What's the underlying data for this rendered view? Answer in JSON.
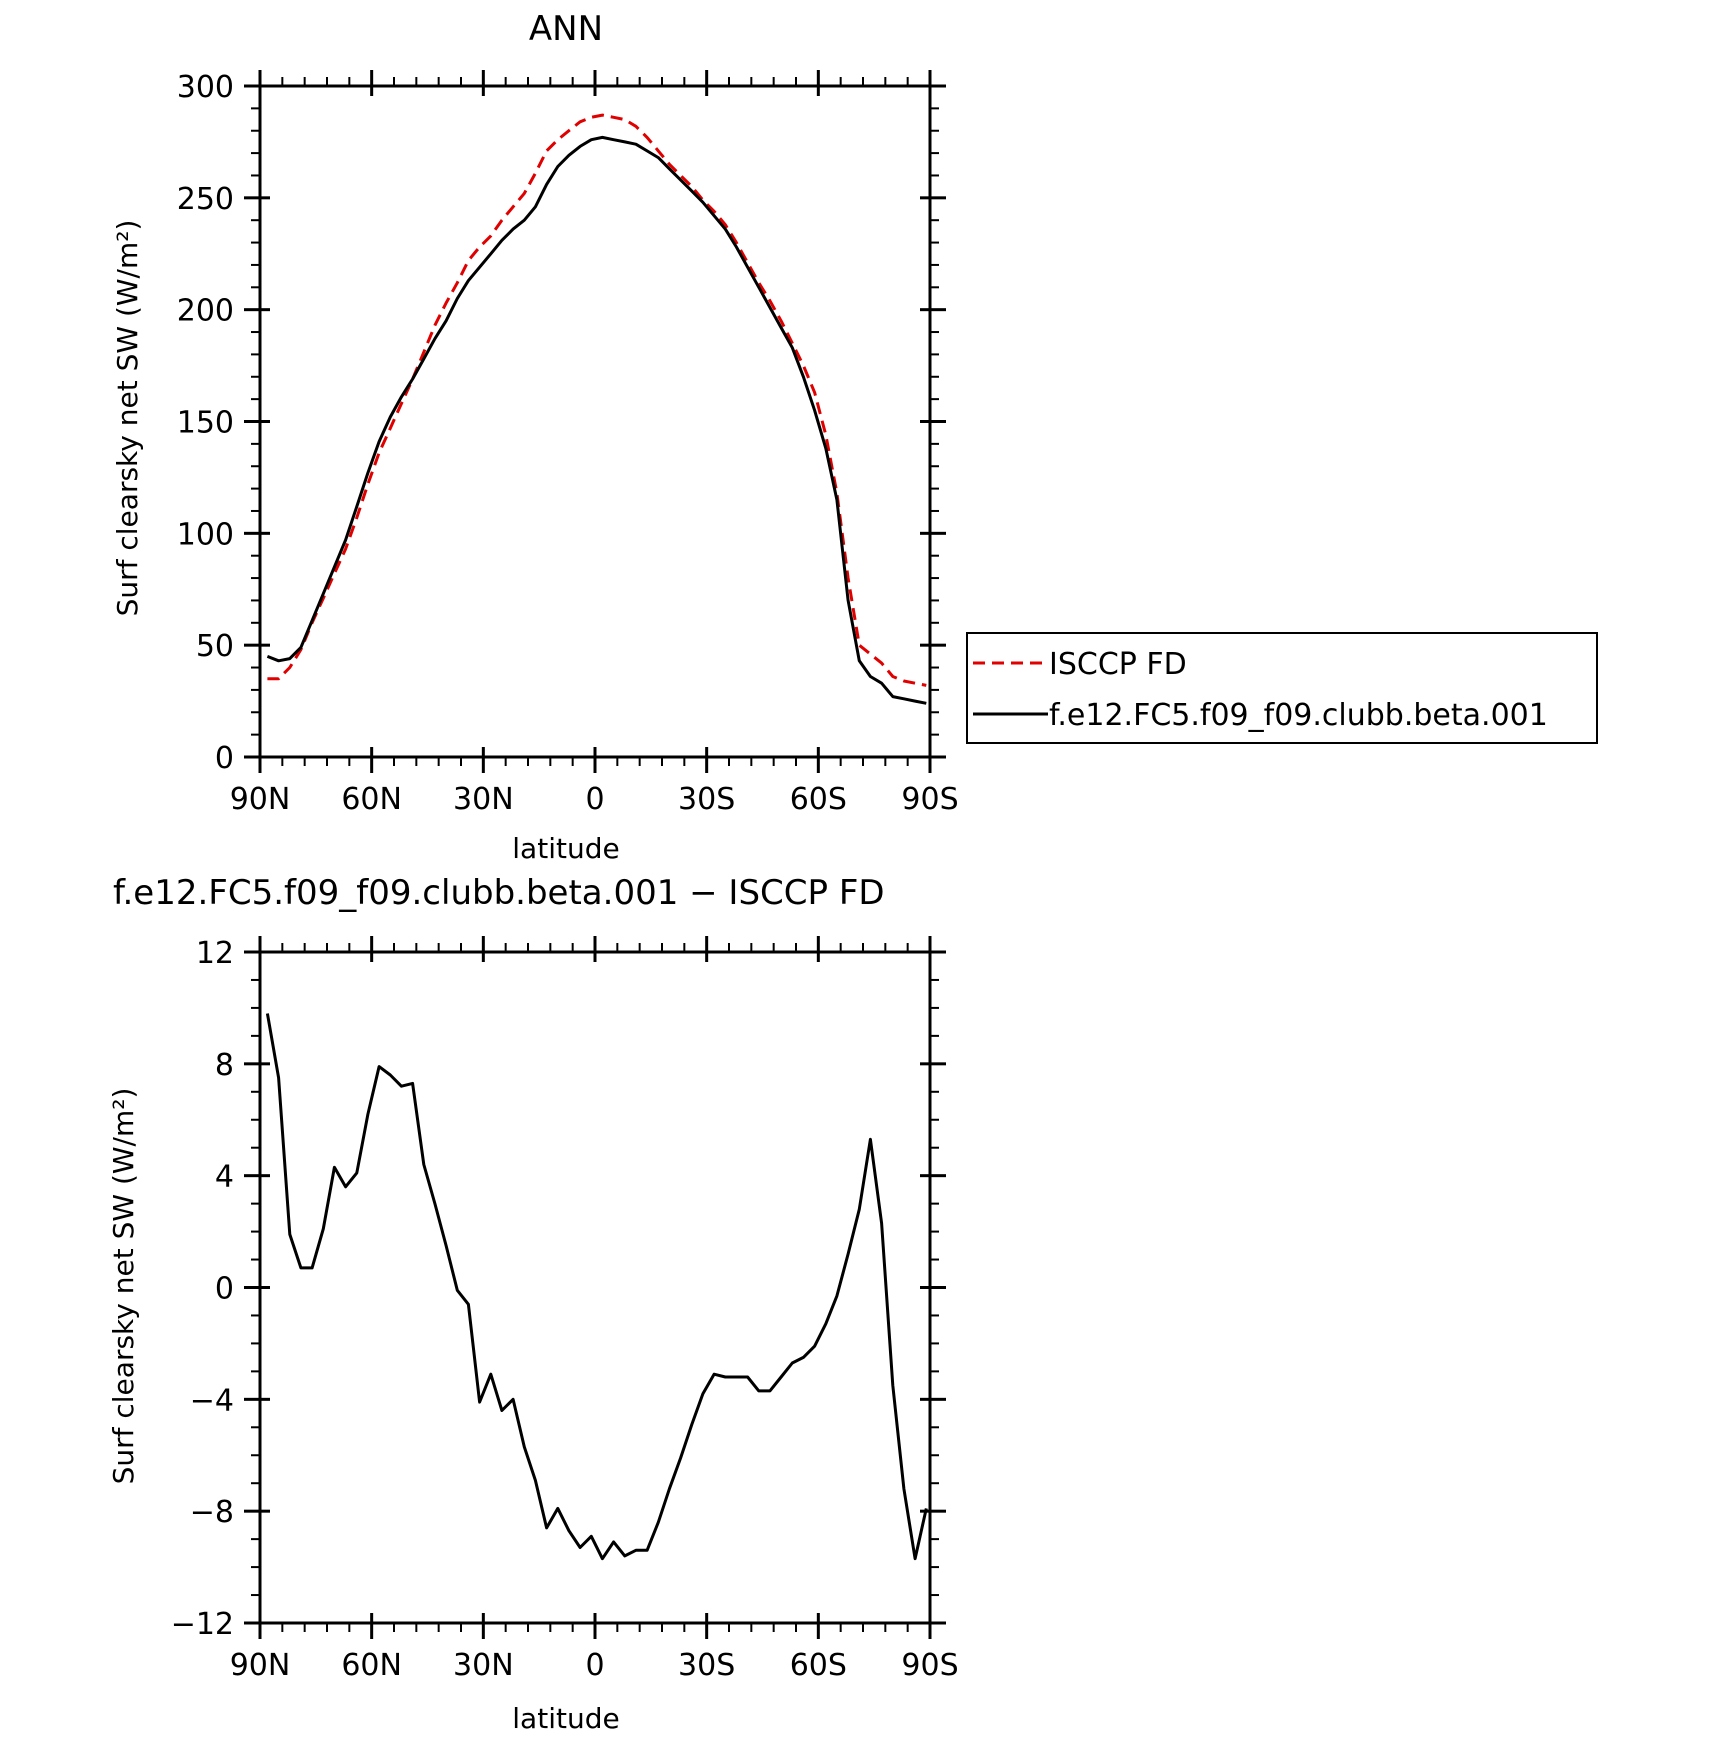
{
  "chart_data": [
    {
      "type": "line",
      "title": "ANN",
      "xlabel": "latitude",
      "ylabel": "Surf clearsky net SW (W/m²)",
      "xlim": [
        -90,
        90
      ],
      "ylim": [
        0,
        300
      ],
      "xticks": [
        -90,
        -60,
        -30,
        0,
        30,
        60,
        90
      ],
      "xtick_labels": [
        "90N",
        "60N",
        "30N",
        "0",
        "30S",
        "60S",
        "90S"
      ],
      "yticks": [
        0,
        50,
        100,
        150,
        200,
        250,
        300
      ],
      "ytick_labels": [
        "0",
        "50",
        "100",
        "150",
        "200",
        "250",
        "300"
      ],
      "grid": false,
      "legend_position": "right, outside plot",
      "series": [
        {
          "name": "ISCCP FD",
          "color": "#e00000",
          "dash": "dashed",
          "x": [
            -88,
            -85,
            -82,
            -79,
            -76,
            -73,
            -70,
            -67,
            -64,
            -61,
            -58,
            -55,
            -52,
            -49,
            -46,
            -43,
            -40,
            -37,
            -34,
            -31,
            -28,
            -25,
            -22,
            -19,
            -16,
            -13,
            -10,
            -7,
            -4,
            -1,
            2,
            5,
            8,
            11,
            14,
            17,
            20,
            23,
            26,
            29,
            32,
            35,
            38,
            41,
            44,
            47,
            50,
            53,
            56,
            59,
            62,
            65,
            68,
            71,
            74,
            77,
            80,
            83,
            86,
            89
          ],
          "y": [
            35,
            35,
            40,
            48,
            60,
            71,
            82,
            93,
            107,
            122,
            136,
            147,
            158,
            169,
            181,
            193,
            203,
            212,
            222,
            228,
            233,
            240,
            246,
            252,
            261,
            271,
            276,
            280,
            284,
            286,
            287,
            286,
            285,
            282,
            277,
            271,
            265,
            260,
            255,
            249,
            244,
            238,
            230,
            221,
            212,
            204,
            195,
            185,
            175,
            163,
            144,
            118,
            80,
            50,
            46,
            42,
            36,
            34,
            33,
            32
          ]
        },
        {
          "name": "f.e12.FC5.f09_f09.clubb.beta.001",
          "color": "#000000",
          "dash": "solid",
          "x": [
            -88,
            -85,
            -82,
            -79,
            -76,
            -73,
            -70,
            -67,
            -64,
            -61,
            -58,
            -55,
            -52,
            -49,
            -46,
            -43,
            -40,
            -37,
            -34,
            -31,
            -28,
            -25,
            -22,
            -19,
            -16,
            -13,
            -10,
            -7,
            -4,
            -1,
            2,
            5,
            8,
            11,
            14,
            17,
            20,
            23,
            26,
            29,
            32,
            35,
            38,
            41,
            44,
            47,
            50,
            53,
            56,
            59,
            62,
            65,
            68,
            71,
            74,
            77,
            80,
            83,
            86,
            89
          ],
          "y": [
            45,
            43,
            44,
            49,
            61,
            73,
            85,
            97,
            112,
            127,
            141,
            152,
            161,
            169,
            178,
            187,
            195,
            205,
            213,
            219,
            225,
            231,
            236,
            240,
            246,
            256,
            264,
            269,
            273,
            276,
            277,
            276,
            275,
            274,
            271,
            268,
            263,
            258,
            253,
            248,
            242,
            236,
            228,
            219,
            210,
            201,
            192,
            183,
            170,
            155,
            138,
            115,
            70,
            43,
            36,
            33,
            27,
            26,
            25,
            24
          ]
        }
      ]
    },
    {
      "type": "line",
      "title": "f.e12.FC5.f09_f09.clubb.beta.001 − ISCCP FD",
      "xlabel": "latitude",
      "ylabel": "Surf clearsky net SW (W/m²)",
      "xlim": [
        -90,
        90
      ],
      "ylim": [
        -12,
        12
      ],
      "xticks": [
        -90,
        -60,
        -30,
        0,
        30,
        60,
        90
      ],
      "xtick_labels": [
        "90N",
        "60N",
        "30N",
        "0",
        "30S",
        "60S",
        "90S"
      ],
      "yticks": [
        -12,
        -8,
        -4,
        0,
        4,
        8,
        12
      ],
      "ytick_labels": [
        "−12",
        "−8",
        "−4",
        "0",
        "4",
        "8",
        "12"
      ],
      "grid": false,
      "series": [
        {
          "color": "#000000",
          "dash": "solid",
          "x": [
            -88,
            -85,
            -82,
            -79,
            -76,
            -73,
            -70,
            -67,
            -64,
            -61,
            -58,
            -55,
            -52,
            -49,
            -46,
            -43,
            -40,
            -37,
            -34,
            -31,
            -28,
            -25,
            -22,
            -19,
            -16,
            -13,
            -10,
            -7,
            -4,
            -1,
            2,
            5,
            8,
            11,
            14,
            17,
            20,
            23,
            26,
            29,
            32,
            35,
            38,
            41,
            44,
            47,
            50,
            53,
            56,
            59,
            62,
            65,
            68,
            71,
            74,
            77,
            80,
            83,
            86,
            89
          ],
          "y": [
            9.8,
            7.5,
            1.9,
            0.7,
            0.7,
            2.1,
            4.3,
            3.6,
            4.1,
            6.2,
            7.9,
            7.6,
            7.2,
            7.3,
            4.4,
            3.0,
            1.5,
            -0.1,
            -0.6,
            -4.1,
            -3.1,
            -4.4,
            -4.0,
            -5.7,
            -6.9,
            -8.6,
            -7.9,
            -8.7,
            -9.3,
            -8.9,
            -9.7,
            -9.1,
            -9.6,
            -9.4,
            -9.4,
            -8.4,
            -7.2,
            -6.1,
            -4.9,
            -3.8,
            -3.1,
            -3.2,
            -3.2,
            -3.2,
            -3.7,
            -3.7,
            -3.2,
            -2.7,
            -2.5,
            -2.1,
            -1.3,
            -0.3,
            1.2,
            2.8,
            5.3,
            2.3,
            -3.5,
            -7.2,
            -9.7,
            -7.9
          ]
        }
      ]
    }
  ]
}
